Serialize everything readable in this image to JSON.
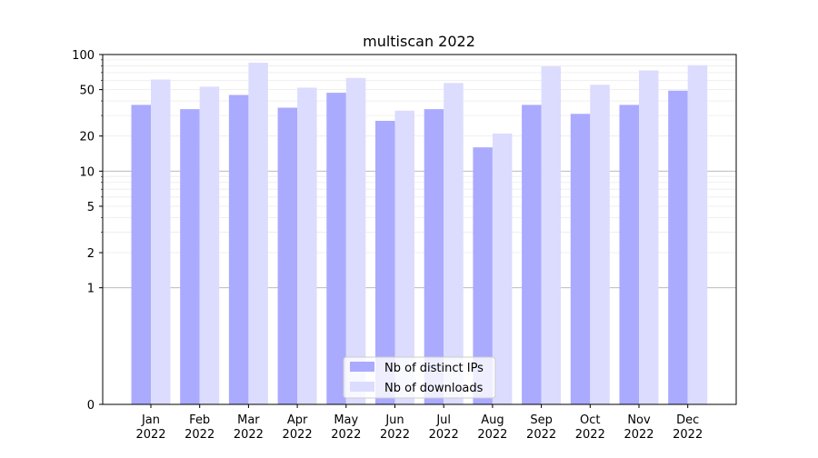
{
  "chart_data": {
    "type": "bar",
    "title": "multiscan 2022",
    "xlabel": "",
    "ylabel": "",
    "y_scale": "symlog",
    "ylim": [
      0,
      100
    ],
    "y_ticks": [
      0,
      1,
      2,
      5,
      10,
      20,
      50,
      100
    ],
    "y_tick_labels": [
      "0",
      "1",
      "2",
      "5",
      "10",
      "20",
      "50",
      "100"
    ],
    "categories": [
      [
        "Jan",
        "2022"
      ],
      [
        "Feb",
        "2022"
      ],
      [
        "Mar",
        "2022"
      ],
      [
        "Apr",
        "2022"
      ],
      [
        "May",
        "2022"
      ],
      [
        "Jun",
        "2022"
      ],
      [
        "Jul",
        "2022"
      ],
      [
        "Aug",
        "2022"
      ],
      [
        "Sep",
        "2022"
      ],
      [
        "Oct",
        "2022"
      ],
      [
        "Nov",
        "2022"
      ],
      [
        "Dec",
        "2022"
      ]
    ],
    "series": [
      {
        "name": "Nb of distinct IPs",
        "color": "#aaaaff",
        "values": [
          37,
          34,
          45,
          35,
          47,
          27,
          34,
          16,
          37,
          31,
          37,
          49
        ]
      },
      {
        "name": "Nb of downloads",
        "color": "#dcdcff",
        "values": [
          61,
          53,
          85,
          52,
          63,
          33,
          57,
          21,
          79,
          55,
          73,
          81
        ]
      }
    ],
    "grid": true,
    "legend_position": "bottom-center",
    "colors": {
      "axis": "#000000",
      "major_grid": "#b0b0b0",
      "minor_grid": "#ececec"
    }
  }
}
